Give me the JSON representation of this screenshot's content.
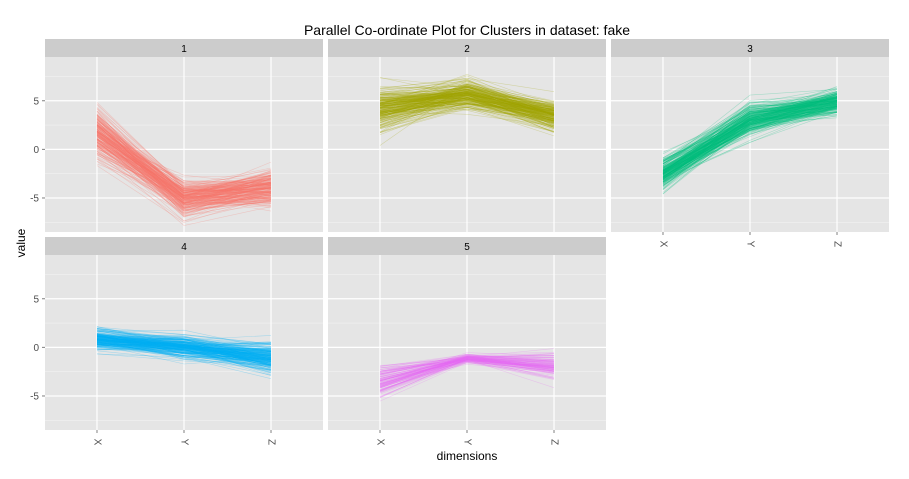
{
  "chart_data": {
    "type": "line",
    "subtype": "parallel-coordinates-faceted",
    "title": "Parallel Co-ordinate Plot for Clusters in dataset: fake",
    "xlabel": "dimensions",
    "ylabel": "value",
    "dimensions": [
      "X",
      "Y",
      "Z"
    ],
    "y_ticks": [
      5,
      0,
      -5
    ],
    "y_tick_labels": [
      "5",
      "0",
      "-5"
    ],
    "ylim": [
      -8.5,
      9.5
    ],
    "grid": true,
    "legend": "none",
    "facets": [
      {
        "label": "1",
        "color": "#F8766D",
        "lines_per_cluster": 250,
        "center": [
          1.8,
          -5.0,
          -4.0
        ],
        "spread": [
          1.5,
          1.1,
          1.1
        ]
      },
      {
        "label": "2",
        "color": "#A3A500",
        "lines_per_cluster": 250,
        "center": [
          4.0,
          5.6,
          3.4
        ],
        "spread": [
          1.3,
          0.9,
          0.9
        ]
      },
      {
        "label": "3",
        "color": "#00BF7D",
        "lines_per_cluster": 250,
        "center": [
          -2.6,
          3.0,
          4.9
        ],
        "spread": [
          1.0,
          1.0,
          0.8
        ]
      },
      {
        "label": "4",
        "color": "#00B0F6",
        "lines_per_cluster": 250,
        "center": [
          0.9,
          0.1,
          -1.0
        ],
        "spread": [
          0.6,
          0.7,
          0.9
        ]
      },
      {
        "label": "5",
        "color": "#E76BF3",
        "lines_per_cluster": 120,
        "center": [
          -3.6,
          -1.1,
          -2.0
        ],
        "spread": [
          1.1,
          0.3,
          0.8
        ]
      }
    ]
  }
}
